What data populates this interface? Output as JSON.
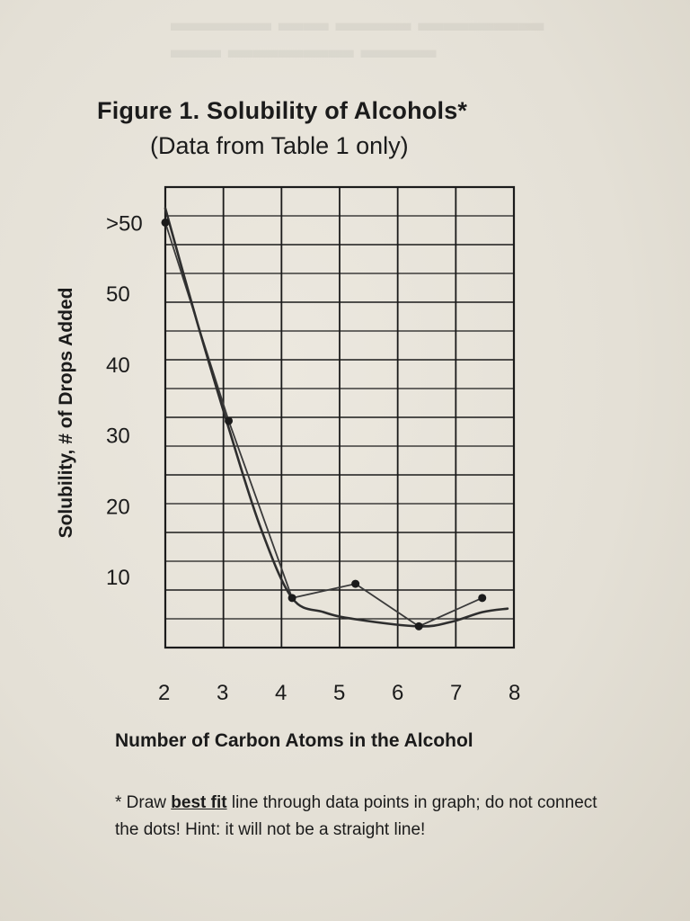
{
  "figure": {
    "title": "Figure 1. Solubility of Alcohols*",
    "subtitle": "(Data from Table 1 only)"
  },
  "footnote": {
    "prefix": "* Draw ",
    "emphasis": "best fit",
    "rest": " line through data points in graph; do not connect the dots!  Hint: it will not be a straight line!"
  },
  "chart_data": {
    "type": "line",
    "xlabel": "Number of Carbon Atoms in the Alcohol",
    "ylabel": "Solubility, # of Drops Added",
    "x_ticks": [
      "2",
      "3",
      "4",
      "5",
      "6",
      "7",
      "8"
    ],
    "y_ticks": [
      "10",
      "20",
      "30",
      "40",
      "50",
      ">50"
    ],
    "xlim": [
      2,
      7.5
    ],
    "ylim": [
      0,
      65
    ],
    "grid": true,
    "series": [
      {
        "points": [
          {
            "x": 2,
            "y": 60
          },
          {
            "x": 3,
            "y": 32
          },
          {
            "x": 4,
            "y": 7
          },
          {
            "x": 5,
            "y": 9
          },
          {
            "x": 6,
            "y": 3
          },
          {
            "x": 7,
            "y": 7
          }
        ]
      }
    ],
    "best_fit": [
      {
        "x": 2,
        "y": 62
      },
      {
        "x": 2.5,
        "y": 46
      },
      {
        "x": 3,
        "y": 31
      },
      {
        "x": 3.5,
        "y": 17
      },
      {
        "x": 4,
        "y": 7
      },
      {
        "x": 4.5,
        "y": 5
      },
      {
        "x": 5,
        "y": 4
      },
      {
        "x": 6,
        "y": 3
      },
      {
        "x": 6.5,
        "y": 3.6
      },
      {
        "x": 7,
        "y": 5
      },
      {
        "x": 7.4,
        "y": 5.5
      }
    ]
  }
}
